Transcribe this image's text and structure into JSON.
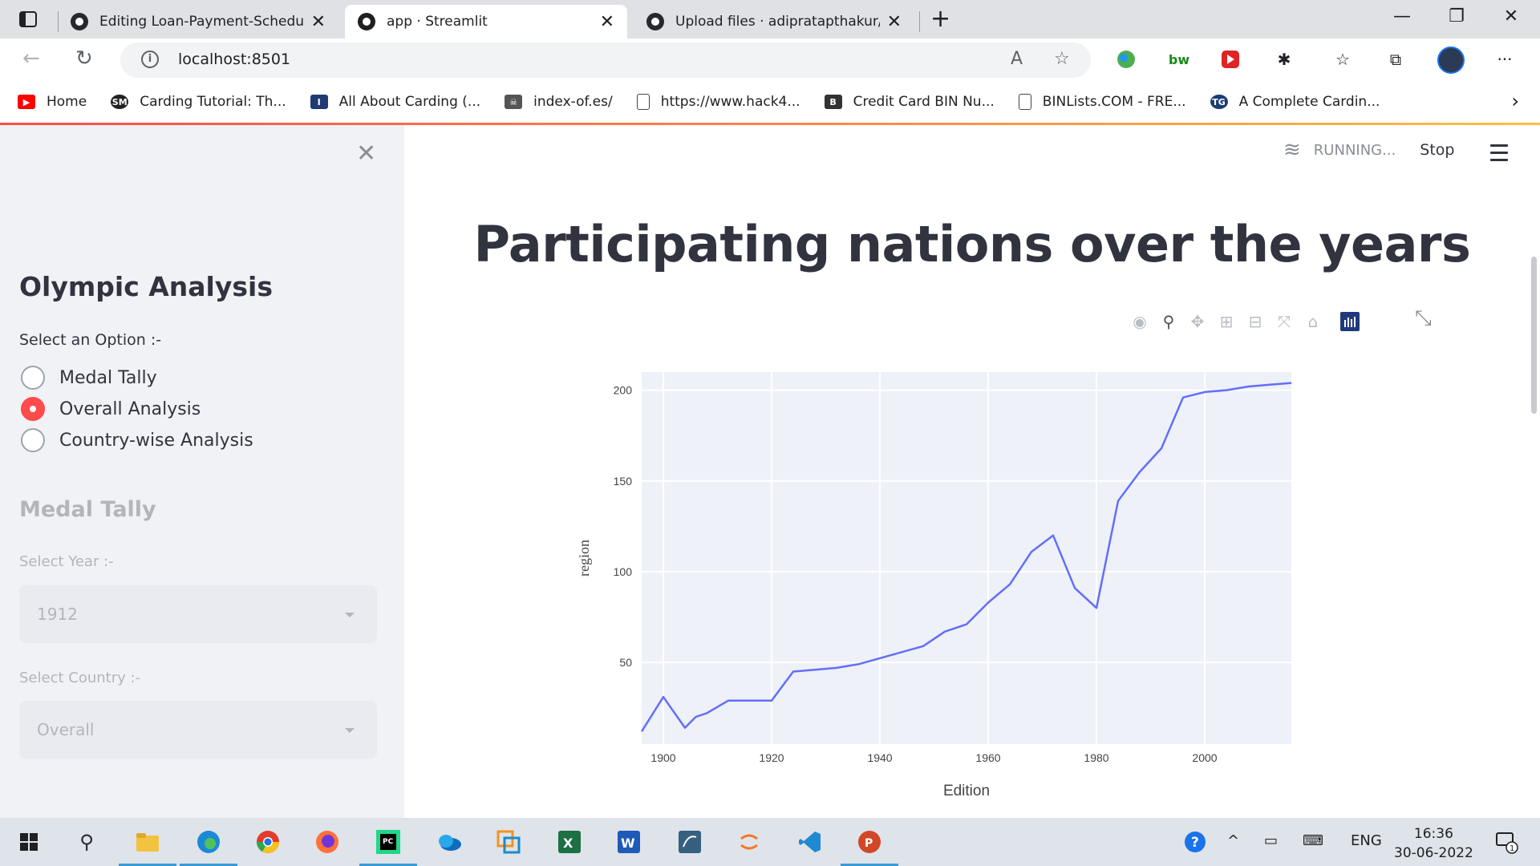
{
  "browser": {
    "tabs": [
      {
        "title": "Editing Loan-Payment-Scheduler",
        "icon": "github-icon",
        "active": false
      },
      {
        "title": "app · Streamlit",
        "icon": "streamlit-icon",
        "active": true
      },
      {
        "title": "Upload files · adipratapthakur/ol",
        "icon": "github-icon",
        "active": false
      }
    ],
    "url": "localhost:8501",
    "bookmarks": [
      {
        "label": "Home",
        "icon": "youtube-icon",
        "color": "#ff0000"
      },
      {
        "label": "Carding Tutorial: Th...",
        "icon": "sm-icon",
        "color": "#222222"
      },
      {
        "label": "All About Carding (...",
        "icon": "i-icon",
        "color": "#1f3b74"
      },
      {
        "label": "index-of.es/",
        "icon": "skull-icon",
        "color": "#555555"
      },
      {
        "label": "https://www.hack4...",
        "icon": "page-icon",
        "color": "#ffffff"
      },
      {
        "label": "Credit Card BIN Nu...",
        "icon": "bin-icon",
        "color": "#333333"
      },
      {
        "label": "BINLists.COM - FRE...",
        "icon": "page-icon",
        "color": "#ffffff"
      },
      {
        "label": "A Complete Cardin...",
        "icon": "tg-icon",
        "color": "#1d3c78"
      }
    ]
  },
  "sidebar": {
    "title": "Olympic Analysis",
    "radio_label": "Select an Option :-",
    "options": [
      {
        "label": "Medal Tally",
        "selected": false
      },
      {
        "label": "Overall Analysis",
        "selected": true
      },
      {
        "label": "Country-wise Analysis",
        "selected": false
      }
    ],
    "section_title": "Medal Tally",
    "year_label": "Select Year :-",
    "year_value": "1912",
    "country_label": "Select Country :-",
    "country_value": "Overall"
  },
  "status": {
    "running": "RUNNING...",
    "stop": "Stop"
  },
  "main": {
    "title": "Participating nations over the years"
  },
  "accent_color": "#ff4b4b",
  "chart_data": {
    "type": "line",
    "xlabel": "Edition",
    "ylabel": "region",
    "xlim": [
      1896,
      2016
    ],
    "ylim": [
      5,
      210
    ],
    "xticks": [
      1900,
      1920,
      1940,
      1960,
      1980,
      2000
    ],
    "yticks": [
      50,
      100,
      150,
      200
    ],
    "line_color": "#636efa",
    "background": "#e5ecf6",
    "grid": true,
    "series": [
      {
        "x": [
          1896,
          1900,
          1904,
          1906,
          1908,
          1912,
          1920,
          1924,
          1928,
          1932,
          1936,
          1948,
          1952,
          1956,
          1960,
          1964,
          1968,
          1972,
          1976,
          1980,
          1984,
          1988,
          1992,
          1996,
          2000,
          2004,
          2008,
          2012,
          2016
        ],
        "y": [
          12,
          31,
          14,
          20,
          22,
          29,
          29,
          45,
          46,
          47,
          49,
          59,
          67,
          71,
          83,
          93,
          111,
          120,
          91,
          80,
          139,
          155,
          168,
          196,
          199,
          200,
          202,
          203,
          204
        ]
      }
    ]
  },
  "taskbar": {
    "lang": "ENG",
    "time": "16:36",
    "date": "30-06-2022",
    "notifications": "1"
  }
}
